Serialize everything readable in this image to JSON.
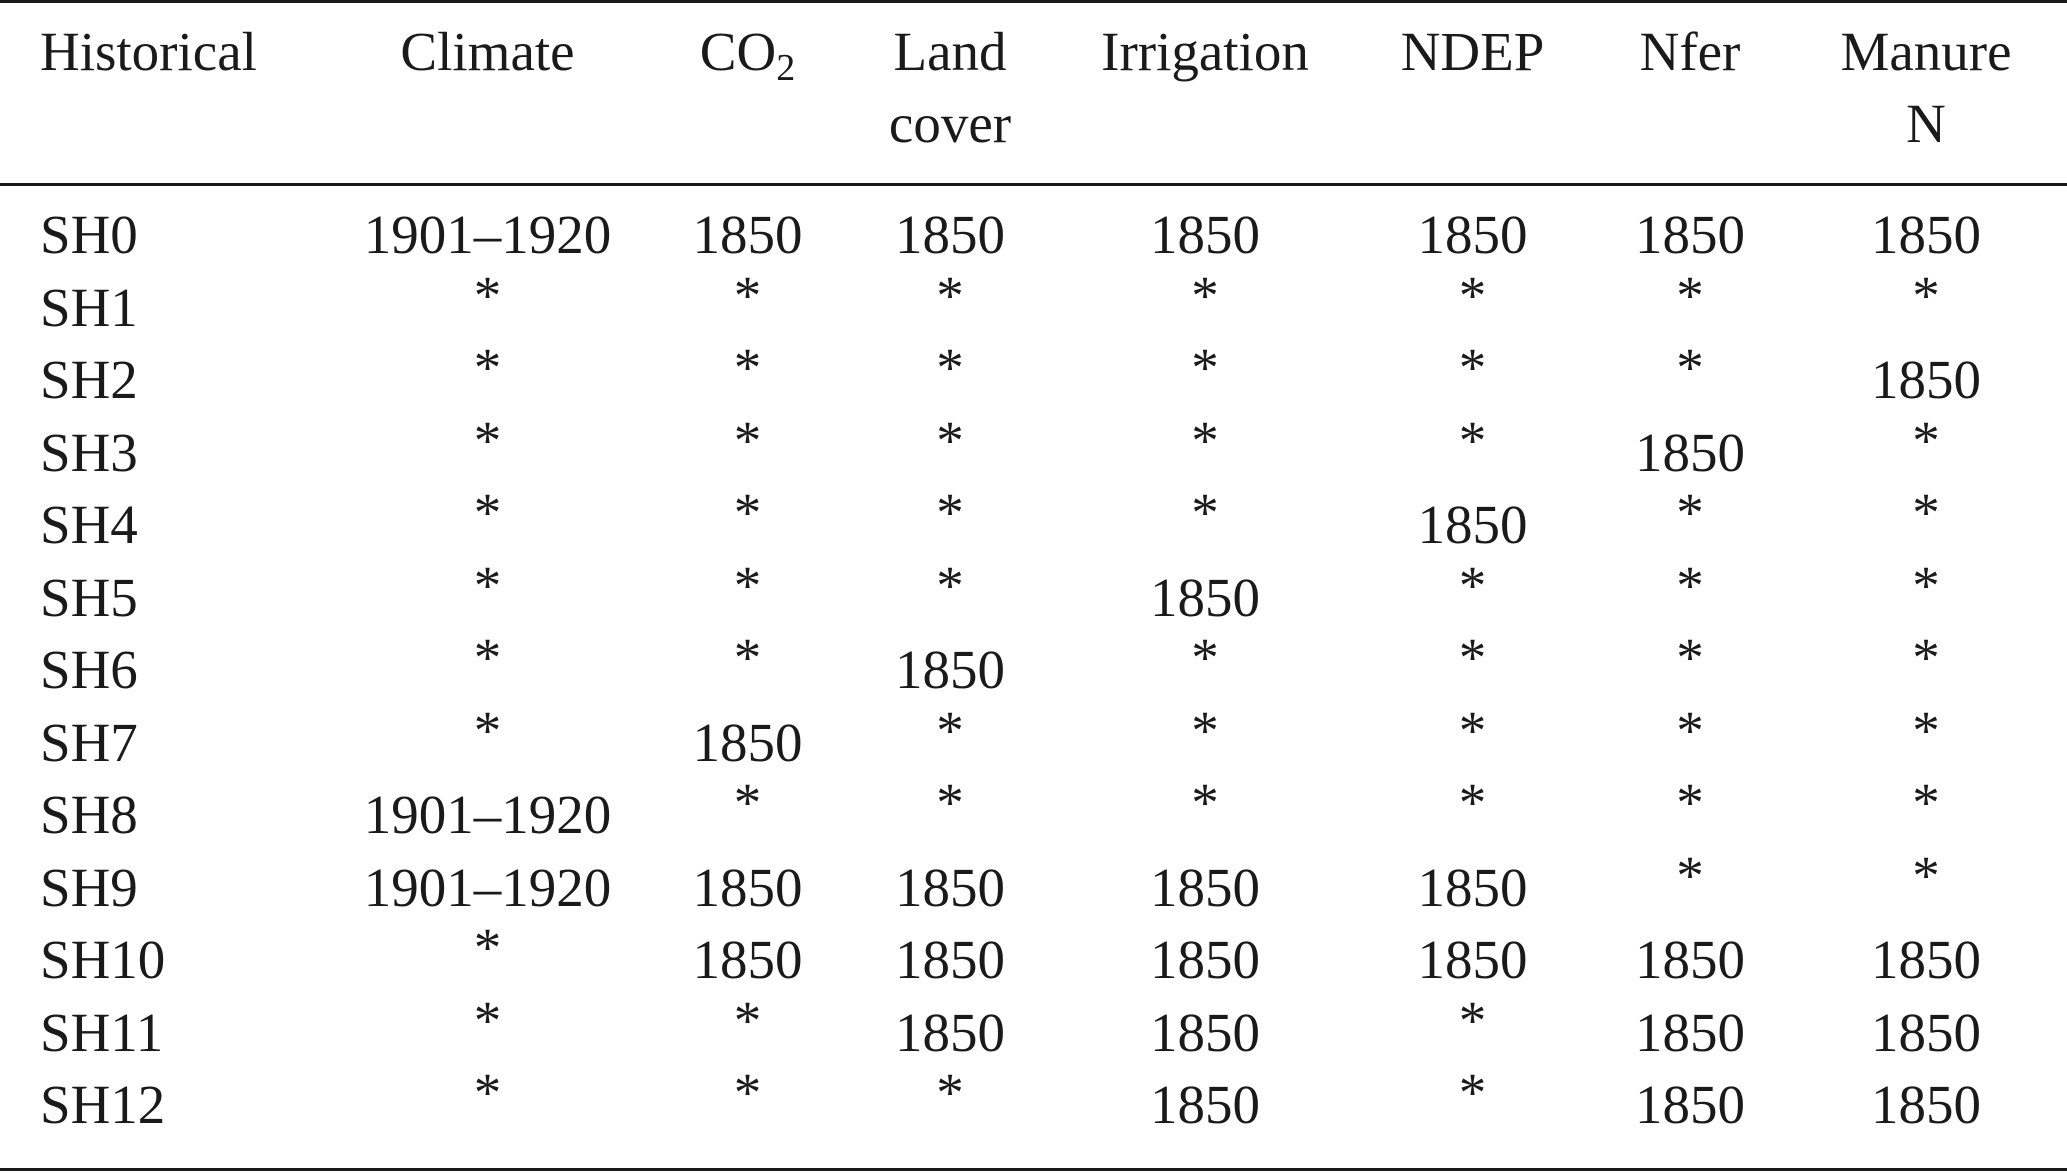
{
  "table": {
    "headers": [
      {
        "line1": "Historical",
        "line2": ""
      },
      {
        "line1": "Climate",
        "line2": ""
      },
      {
        "line1": "CO",
        "sub": "2",
        "line2": ""
      },
      {
        "line1": "Land",
        "line2": "cover"
      },
      {
        "line1": "Irrigation",
        "line2": ""
      },
      {
        "line1": "NDEP",
        "line2": ""
      },
      {
        "line1": "Nfer",
        "line2": ""
      },
      {
        "line1": "Manure",
        "line2": "N"
      }
    ],
    "rows": [
      [
        "SH0",
        "1901–1920",
        "1850",
        "1850",
        "1850",
        "1850",
        "1850",
        "1850"
      ],
      [
        "SH1",
        "*",
        "*",
        "*",
        "*",
        "*",
        "*",
        "*"
      ],
      [
        "SH2",
        "*",
        "*",
        "*",
        "*",
        "*",
        "*",
        "1850"
      ],
      [
        "SH3",
        "*",
        "*",
        "*",
        "*",
        "*",
        "1850",
        "*"
      ],
      [
        "SH4",
        "*",
        "*",
        "*",
        "*",
        "1850",
        "*",
        "*"
      ],
      [
        "SH5",
        "*",
        "*",
        "*",
        "1850",
        "*",
        "*",
        "*"
      ],
      [
        "SH6",
        "*",
        "*",
        "1850",
        "*",
        "*",
        "*",
        "*"
      ],
      [
        "SH7",
        "*",
        "1850",
        "*",
        "*",
        "*",
        "*",
        "*"
      ],
      [
        "SH8",
        "1901–1920",
        "*",
        "*",
        "*",
        "*",
        "*",
        "*"
      ],
      [
        "SH9",
        "1901–1920",
        "1850",
        "1850",
        "1850",
        "1850",
        "*",
        "*"
      ],
      [
        "SH10",
        "*",
        "1850",
        "1850",
        "1850",
        "1850",
        "1850",
        "1850"
      ],
      [
        "SH11",
        "*",
        "*",
        "1850",
        "1850",
        "*",
        "1850",
        "1850"
      ],
      [
        "SH12",
        "*",
        "*",
        "*",
        "1850",
        "*",
        "1850",
        "1850"
      ]
    ]
  }
}
